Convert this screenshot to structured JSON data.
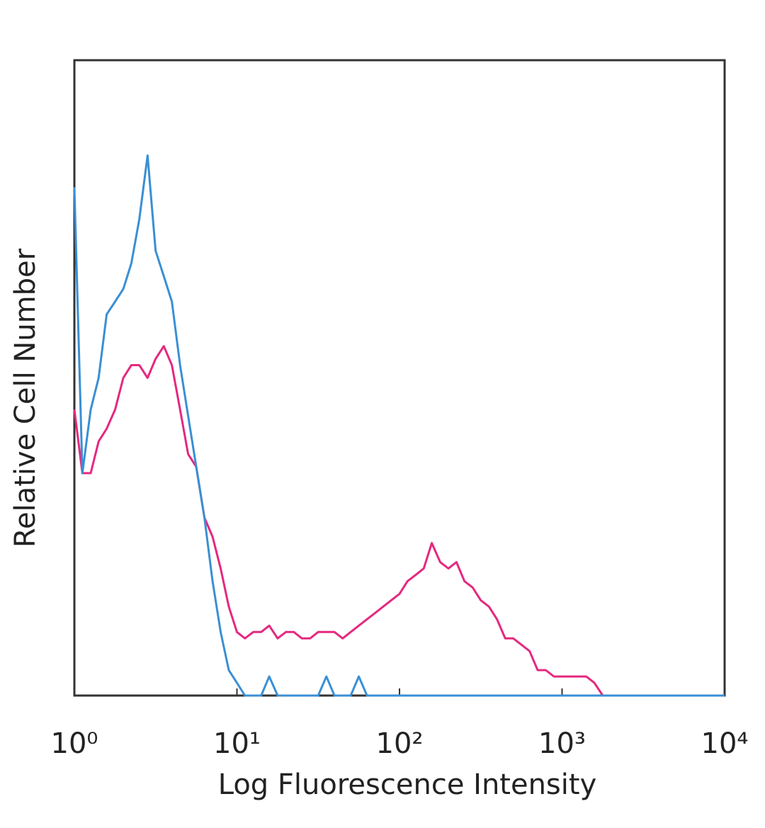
{
  "chart_data": {
    "type": "line",
    "x_label": "Log Fluorescence Intensity",
    "y_label": "Relative Cell Number",
    "xscale": "log",
    "xlim": [
      1,
      10000
    ],
    "ylim": [
      0,
      100
    ],
    "xticks": [
      {
        "value": 1,
        "label": "10⁰"
      },
      {
        "value": 10,
        "label": "10¹"
      },
      {
        "value": 100,
        "label": "10²"
      },
      {
        "value": 1000,
        "label": "10³"
      },
      {
        "value": 10000,
        "label": "10⁴"
      }
    ],
    "x": [
      1,
      1.12,
      1.26,
      1.41,
      1.58,
      1.78,
      2,
      2.24,
      2.51,
      2.82,
      3.16,
      3.55,
      3.98,
      4.47,
      5.01,
      5.62,
      6.31,
      7.08,
      7.94,
      8.91,
      10,
      11.2,
      12.6,
      14.1,
      15.8,
      17.8,
      20,
      22.4,
      25.1,
      28.2,
      31.6,
      35.5,
      39.8,
      44.7,
      50.1,
      56.2,
      63.1,
      70.8,
      79.4,
      89.1,
      100,
      112,
      126,
      141,
      158,
      178,
      200,
      224,
      251,
      282,
      316,
      355,
      398,
      447,
      501,
      562,
      631,
      708,
      794,
      891,
      1000,
      1120,
      1260,
      1410,
      1580,
      1780,
      3160,
      10000
    ],
    "series": [
      {
        "color": "#3a8fd4",
        "values": [
          80,
          35,
          45,
          50,
          60,
          62,
          64,
          68,
          75,
          85,
          70,
          66,
          62,
          52,
          44,
          36,
          28,
          18,
          10,
          4,
          2,
          0,
          0,
          0,
          3,
          0,
          0,
          0,
          0,
          0,
          0,
          3,
          0,
          0,
          0,
          3,
          0,
          0,
          0,
          0,
          0,
          0,
          0,
          0,
          0,
          0,
          0,
          0,
          0,
          0,
          0,
          0,
          0,
          0,
          0,
          0,
          0,
          0,
          0,
          0,
          0,
          0,
          0,
          0,
          0,
          0,
          0,
          0
        ]
      },
      {
        "color": "#e5287f",
        "values": [
          45,
          35,
          35,
          40,
          42,
          45,
          50,
          52,
          52,
          50,
          53,
          55,
          52,
          45,
          38,
          36,
          28,
          25,
          20,
          14,
          10,
          9,
          10,
          10,
          11,
          9,
          10,
          10,
          9,
          9,
          10,
          10,
          10,
          9,
          10,
          11,
          12,
          13,
          14,
          15,
          16,
          18,
          19,
          20,
          24,
          21,
          20,
          21,
          18,
          17,
          15,
          14,
          12,
          9,
          9,
          8,
          7,
          4,
          4,
          3,
          3,
          3,
          3,
          3,
          2,
          0,
          0,
          0
        ]
      }
    ]
  }
}
